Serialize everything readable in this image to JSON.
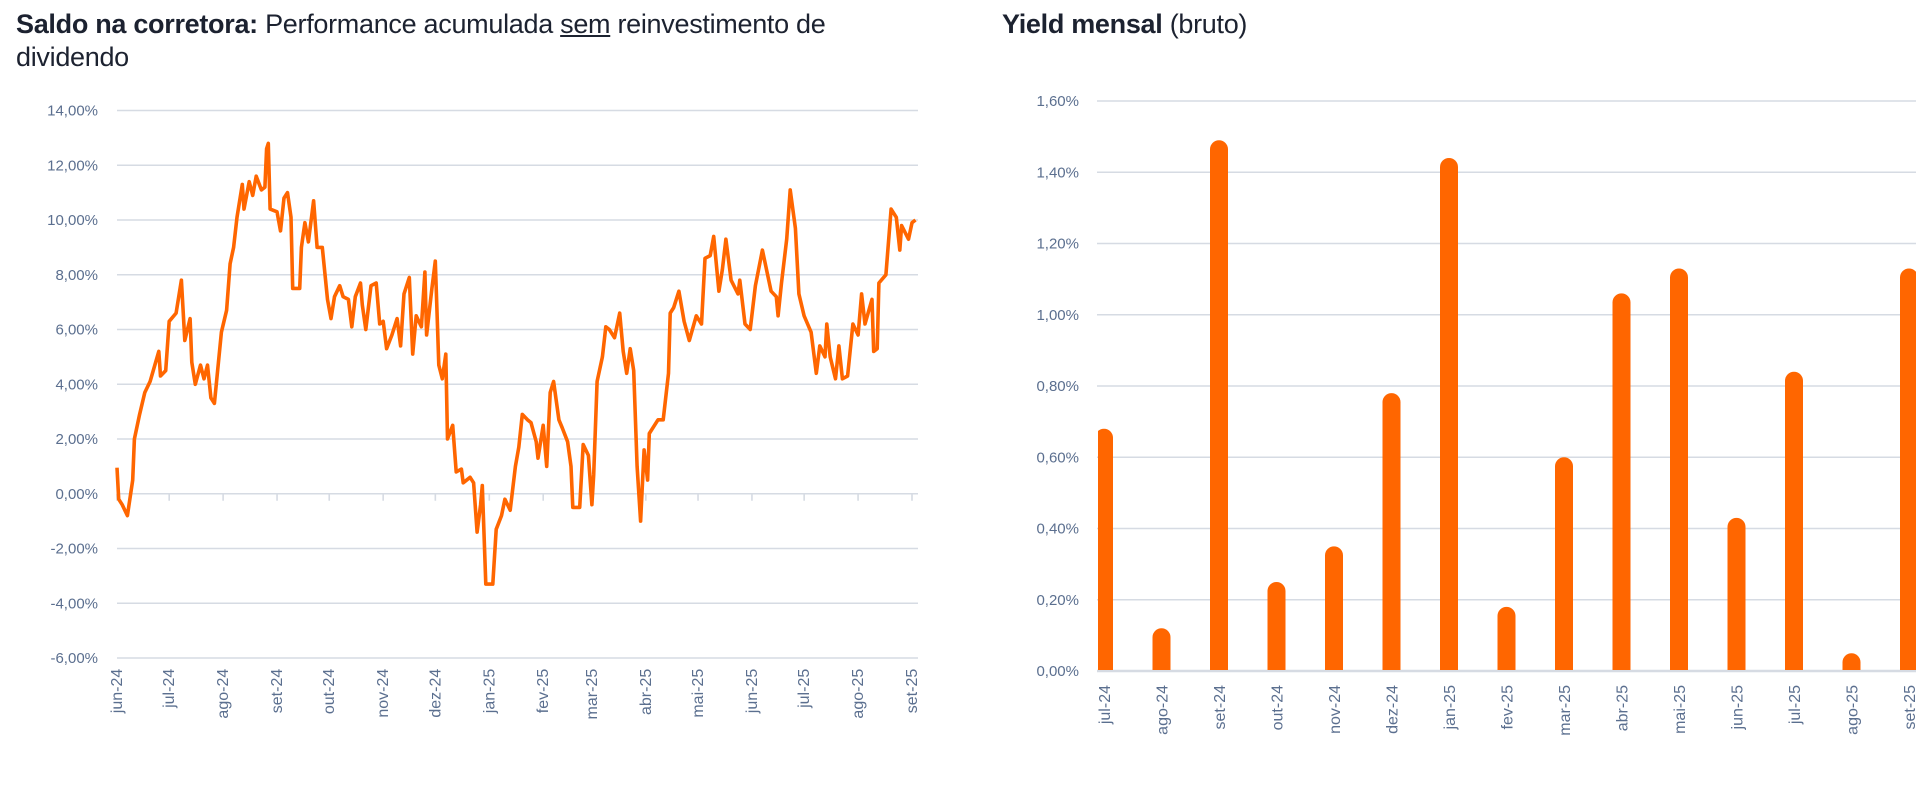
{
  "colors": {
    "series": "#FF6600",
    "grid": "#D6DBE3",
    "axis_text": "#5B6F8F",
    "title": "#1C2230"
  },
  "chart_data": [
    {
      "type": "line",
      "title_bold": "Saldo na corretora:",
      "title_pre": "Performance acumulada",
      "title_underlined": "sem",
      "title_post": "reinvestimento de dividendo",
      "xlabel": "",
      "ylabel": "",
      "ylim": [
        -6,
        14
      ],
      "y_ticks": [
        "14,00%",
        "12,00%",
        "10,00%",
        "8,00%",
        "6,00%",
        "4,00%",
        "2,00%",
        "0,00%",
        "-2,00%",
        "-4,00%",
        "-6,00%"
      ],
      "y_tick_values": [
        14,
        12,
        10,
        8,
        6,
        4,
        2,
        0,
        -2,
        -4,
        -6
      ],
      "x_ticks": [
        "jun-24",
        "jul-24",
        "ago-24",
        "set-24",
        "out-24",
        "nov-24",
        "dez-24",
        "jan-25",
        "fev-25",
        "mar-25",
        "abr-25",
        "mai-25",
        "jun-25",
        "jul-25",
        "ago-25",
        "set-25"
      ],
      "x_tick_dates": [
        "2024-06-01",
        "2024-07-01",
        "2024-08-01",
        "2024-09-01",
        "2024-10-01",
        "2024-11-01",
        "2024-12-01",
        "2025-01-01",
        "2025-02-01",
        "2025-03-01",
        "2025-04-01",
        "2025-05-01",
        "2025-06-01",
        "2025-07-01",
        "2025-08-01",
        "2025-09-01"
      ],
      "grid": true,
      "points": [
        [
          "2024-06-01",
          0.95
        ],
        [
          "2024-06-02",
          -0.2
        ],
        [
          "2024-06-04",
          -0.4
        ],
        [
          "2024-06-07",
          -0.8
        ],
        [
          "2024-06-10",
          0.5
        ],
        [
          "2024-06-11",
          2.0
        ],
        [
          "2024-06-14",
          2.9
        ],
        [
          "2024-06-17",
          3.7
        ],
        [
          "2024-06-20",
          4.1
        ],
        [
          "2024-06-25",
          5.2
        ],
        [
          "2024-06-26",
          4.3
        ],
        [
          "2024-06-29",
          4.5
        ],
        [
          "2024-07-01",
          6.3
        ],
        [
          "2024-07-05",
          6.6
        ],
        [
          "2024-07-08",
          7.8
        ],
        [
          "2024-07-10",
          5.6
        ],
        [
          "2024-07-13",
          6.4
        ],
        [
          "2024-07-14",
          4.8
        ],
        [
          "2024-07-16",
          4.0
        ],
        [
          "2024-07-19",
          4.7
        ],
        [
          "2024-07-21",
          4.2
        ],
        [
          "2024-07-23",
          4.7
        ],
        [
          "2024-07-25",
          3.5
        ],
        [
          "2024-07-27",
          3.3
        ],
        [
          "2024-07-29",
          4.6
        ],
        [
          "2024-07-31",
          5.9
        ],
        [
          "2024-08-03",
          6.7
        ],
        [
          "2024-08-05",
          8.4
        ],
        [
          "2024-08-07",
          9.0
        ],
        [
          "2024-08-09",
          10.1
        ],
        [
          "2024-08-12",
          11.3
        ],
        [
          "2024-08-13",
          10.4
        ],
        [
          "2024-08-16",
          11.4
        ],
        [
          "2024-08-18",
          10.9
        ],
        [
          "2024-08-20",
          11.6
        ],
        [
          "2024-08-23",
          11.1
        ],
        [
          "2024-08-25",
          11.2
        ],
        [
          "2024-08-26",
          12.6
        ],
        [
          "2024-08-27",
          12.8
        ],
        [
          "2024-08-28",
          10.4
        ],
        [
          "2024-09-01",
          10.3
        ],
        [
          "2024-09-03",
          9.6
        ],
        [
          "2024-09-05",
          10.8
        ],
        [
          "2024-09-07",
          11.0
        ],
        [
          "2024-09-09",
          10.1
        ],
        [
          "2024-09-10",
          7.5
        ],
        [
          "2024-09-14",
          7.5
        ],
        [
          "2024-09-15",
          9.0
        ],
        [
          "2024-09-17",
          9.9
        ],
        [
          "2024-09-19",
          9.2
        ],
        [
          "2024-09-22",
          10.7
        ],
        [
          "2024-09-24",
          9.0
        ],
        [
          "2024-09-27",
          9.0
        ],
        [
          "2024-09-30",
          7.1
        ],
        [
          "2024-10-02",
          6.4
        ],
        [
          "2024-10-04",
          7.2
        ],
        [
          "2024-10-07",
          7.6
        ],
        [
          "2024-10-09",
          7.2
        ],
        [
          "2024-10-12",
          7.1
        ],
        [
          "2024-10-14",
          6.1
        ],
        [
          "2024-10-16",
          7.2
        ],
        [
          "2024-10-19",
          7.7
        ],
        [
          "2024-10-20",
          6.9
        ],
        [
          "2024-10-22",
          6.0
        ],
        [
          "2024-10-25",
          7.6
        ],
        [
          "2024-10-28",
          7.7
        ],
        [
          "2024-10-30",
          6.2
        ],
        [
          "2024-11-01",
          6.3
        ],
        [
          "2024-11-03",
          5.3
        ],
        [
          "2024-11-06",
          5.8
        ],
        [
          "2024-11-09",
          6.4
        ],
        [
          "2024-11-11",
          5.4
        ],
        [
          "2024-11-13",
          7.3
        ],
        [
          "2024-11-16",
          7.9
        ],
        [
          "2024-11-18",
          5.1
        ],
        [
          "2024-11-20",
          6.5
        ],
        [
          "2024-11-23",
          6.1
        ],
        [
          "2024-11-25",
          8.1
        ],
        [
          "2024-11-26",
          5.8
        ],
        [
          "2024-11-29",
          7.5
        ],
        [
          "2024-12-01",
          8.5
        ],
        [
          "2024-12-03",
          4.7
        ],
        [
          "2024-12-05",
          4.2
        ],
        [
          "2024-12-07",
          5.1
        ],
        [
          "2024-12-08",
          2.0
        ],
        [
          "2024-12-11",
          2.5
        ],
        [
          "2024-12-13",
          0.8
        ],
        [
          "2024-12-16",
          0.9
        ],
        [
          "2024-12-17",
          0.4
        ],
        [
          "2024-12-21",
          0.6
        ],
        [
          "2024-12-23",
          0.4
        ],
        [
          "2024-12-25",
          -1.4
        ],
        [
          "2024-12-27",
          -0.4
        ],
        [
          "2024-12-28",
          0.3
        ],
        [
          "2024-12-30",
          -3.3
        ],
        [
          "2025-01-03",
          -3.3
        ],
        [
          "2025-01-05",
          -1.3
        ],
        [
          "2025-01-08",
          -0.8
        ],
        [
          "2025-01-10",
          -0.2
        ],
        [
          "2025-01-13",
          -0.6
        ],
        [
          "2025-01-16",
          1.0
        ],
        [
          "2025-01-18",
          1.7
        ],
        [
          "2025-01-20",
          2.9
        ],
        [
          "2025-01-23",
          2.7
        ],
        [
          "2025-01-25",
          2.6
        ],
        [
          "2025-01-28",
          1.9
        ],
        [
          "2025-01-29",
          1.3
        ],
        [
          "2025-02-01",
          2.5
        ],
        [
          "2025-02-03",
          1.0
        ],
        [
          "2025-02-05",
          3.7
        ],
        [
          "2025-02-07",
          4.1
        ],
        [
          "2025-02-10",
          2.7
        ],
        [
          "2025-02-12",
          2.4
        ],
        [
          "2025-02-15",
          1.9
        ],
        [
          "2025-02-17",
          1.0
        ],
        [
          "2025-02-18",
          -0.5
        ],
        [
          "2025-02-22",
          -0.5
        ],
        [
          "2025-02-24",
          1.8
        ],
        [
          "2025-02-27",
          1.4
        ],
        [
          "2025-03-01",
          -0.4
        ],
        [
          "2025-03-02",
          0.7
        ],
        [
          "2025-03-04",
          4.1
        ],
        [
          "2025-03-07",
          5.0
        ],
        [
          "2025-03-09",
          6.1
        ],
        [
          "2025-03-11",
          6.0
        ],
        [
          "2025-03-14",
          5.7
        ],
        [
          "2025-03-17",
          6.6
        ],
        [
          "2025-03-19",
          5.2
        ],
        [
          "2025-03-21",
          4.4
        ],
        [
          "2025-03-23",
          5.3
        ],
        [
          "2025-03-25",
          4.5
        ],
        [
          "2025-03-27",
          1.0
        ],
        [
          "2025-03-29",
          -1.0
        ],
        [
          "2025-03-31",
          1.6
        ],
        [
          "2025-04-02",
          0.5
        ],
        [
          "2025-04-03",
          2.2
        ],
        [
          "2025-04-06",
          2.5
        ],
        [
          "2025-04-08",
          2.7
        ],
        [
          "2025-04-11",
          2.7
        ],
        [
          "2025-04-14",
          4.4
        ],
        [
          "2025-04-15",
          6.6
        ],
        [
          "2025-04-17",
          6.8
        ],
        [
          "2025-04-20",
          7.4
        ],
        [
          "2025-04-23",
          6.3
        ],
        [
          "2025-04-26",
          5.6
        ],
        [
          "2025-04-30",
          6.5
        ],
        [
          "2025-05-03",
          6.2
        ],
        [
          "2025-05-05",
          8.6
        ],
        [
          "2025-05-08",
          8.7
        ],
        [
          "2025-05-10",
          9.4
        ],
        [
          "2025-05-13",
          7.4
        ],
        [
          "2025-05-15",
          8.2
        ],
        [
          "2025-05-17",
          9.3
        ],
        [
          "2025-05-20",
          7.8
        ],
        [
          "2025-05-24",
          7.3
        ],
        [
          "2025-05-25",
          7.8
        ],
        [
          "2025-05-28",
          6.2
        ],
        [
          "2025-05-31",
          6.0
        ],
        [
          "2025-06-03",
          7.6
        ],
        [
          "2025-06-07",
          8.9
        ],
        [
          "2025-06-10",
          8.0
        ],
        [
          "2025-06-12",
          7.4
        ],
        [
          "2025-06-15",
          7.2
        ],
        [
          "2025-06-16",
          6.5
        ],
        [
          "2025-06-18",
          7.7
        ],
        [
          "2025-06-21",
          9.3
        ],
        [
          "2025-06-23",
          11.1
        ],
        [
          "2025-06-26",
          9.7
        ],
        [
          "2025-06-28",
          7.3
        ],
        [
          "2025-07-01",
          6.5
        ],
        [
          "2025-07-05",
          5.9
        ],
        [
          "2025-07-08",
          4.4
        ],
        [
          "2025-07-10",
          5.4
        ],
        [
          "2025-07-13",
          5.0
        ],
        [
          "2025-07-14",
          6.2
        ],
        [
          "2025-07-16",
          5.0
        ],
        [
          "2025-07-19",
          4.2
        ],
        [
          "2025-07-21",
          5.4
        ],
        [
          "2025-07-23",
          4.2
        ],
        [
          "2025-07-26",
          4.3
        ],
        [
          "2025-07-29",
          6.2
        ],
        [
          "2025-08-01",
          5.8
        ],
        [
          "2025-08-03",
          7.3
        ],
        [
          "2025-08-05",
          6.2
        ],
        [
          "2025-08-09",
          7.1
        ],
        [
          "2025-08-10",
          5.2
        ],
        [
          "2025-08-12",
          5.3
        ],
        [
          "2025-08-13",
          7.7
        ],
        [
          "2025-08-17",
          8.0
        ],
        [
          "2025-08-20",
          10.4
        ],
        [
          "2025-08-23",
          10.1
        ],
        [
          "2025-08-25",
          8.9
        ],
        [
          "2025-08-26",
          9.8
        ],
        [
          "2025-08-30",
          9.3
        ],
        [
          "2025-09-01",
          9.9
        ],
        [
          "2025-09-03",
          10.0
        ]
      ]
    },
    {
      "type": "bar",
      "title_bold": "Yield mensal",
      "title_post": "(bruto)",
      "xlabel": "",
      "ylabel": "",
      "ylim": [
        0,
        1.6
      ],
      "y_ticks": [
        "1,60%",
        "1,40%",
        "1,20%",
        "1,00%",
        "0,80%",
        "0,60%",
        "0,40%",
        "0,20%",
        "0,00%"
      ],
      "y_tick_values": [
        1.6,
        1.4,
        1.2,
        1.0,
        0.8,
        0.6,
        0.4,
        0.2,
        0.0
      ],
      "grid": true,
      "categories": [
        "jul-24",
        "ago-24",
        "set-24",
        "out-24",
        "nov-24",
        "dez-24",
        "jan-25",
        "fev-25",
        "mar-25",
        "abr-25",
        "mai-25",
        "jun-25",
        "jul-25",
        "ago-25",
        "set-25"
      ],
      "values": [
        0.68,
        0.12,
        1.49,
        0.25,
        0.35,
        0.78,
        1.44,
        0.18,
        0.6,
        1.06,
        1.13,
        0.43,
        0.84,
        0.05,
        1.13
      ]
    }
  ]
}
